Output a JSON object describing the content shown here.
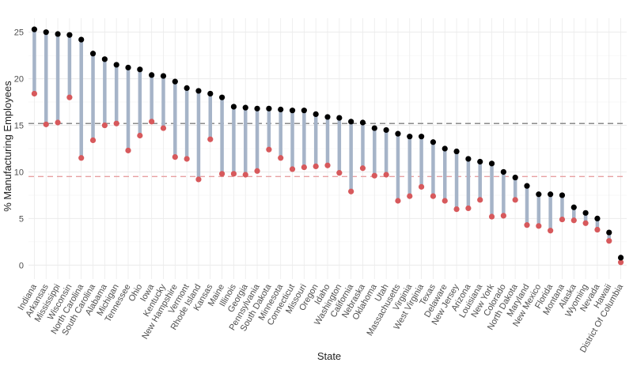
{
  "chart_data": {
    "type": "dumbbell",
    "xlabel": "State",
    "ylabel": "% Manufacturing Employees",
    "ylim": [
      -1.5,
      26.5
    ],
    "yticks": [
      0,
      5,
      10,
      15,
      20,
      25
    ],
    "grid": true,
    "legend": "none",
    "categories": [
      "Indiana",
      "Arkansas",
      "Mississippi",
      "Wisconsin",
      "North Carolina",
      "South Carolina",
      "Alabama",
      "Michigan",
      "Tennessee",
      "Ohio",
      "Iowa",
      "Kentucky",
      "New Hampshire",
      "Vermont",
      "Rhode Island",
      "Kansas",
      "Maine",
      "Illinois",
      "Georgia",
      "Pennsylvania",
      "South Dakota",
      "Minnesota",
      "Connecticut",
      "Missouri",
      "Oregon",
      "Idaho",
      "Washington",
      "California",
      "Nebraska",
      "Oklahoma",
      "Utah",
      "Massachusetts",
      "Virginia",
      "West Virginia",
      "Texas",
      "Delaware",
      "New Jersey",
      "Arizona",
      "Louisiana",
      "New York",
      "Colorado",
      "North Dakota",
      "Maryland",
      "New Mexico",
      "Florida",
      "Montana",
      "Alaska",
      "Wyoming",
      "Nevada",
      "Hawaii",
      "District Of Columbia"
    ],
    "series": [
      {
        "values": [
          25.3,
          25.0,
          24.8,
          24.7,
          24.2,
          22.7,
          22.1,
          21.5,
          21.2,
          21.0,
          20.4,
          20.3,
          19.7,
          19.0,
          18.7,
          18.4,
          18.0,
          17.0,
          16.9,
          16.8,
          16.8,
          16.7,
          16.6,
          16.6,
          16.2,
          15.9,
          15.8,
          15.4,
          15.3,
          14.7,
          14.5,
          14.1,
          13.8,
          13.8,
          13.2,
          12.5,
          12.2,
          11.4,
          11.1,
          10.9,
          10.0,
          9.4,
          8.5,
          7.6,
          7.6,
          7.5,
          6.2,
          5.6,
          5.0,
          3.5,
          0.8
        ],
        "color": "#000000"
      },
      {
        "values": [
          18.4,
          15.1,
          15.3,
          18.0,
          11.5,
          13.4,
          15.0,
          15.2,
          12.3,
          13.9,
          15.4,
          14.7,
          11.6,
          11.4,
          9.2,
          13.5,
          9.8,
          9.8,
          9.7,
          10.1,
          12.4,
          11.5,
          10.3,
          10.5,
          10.6,
          10.7,
          9.9,
          7.9,
          10.4,
          9.6,
          9.7,
          6.9,
          7.4,
          8.4,
          7.4,
          6.9,
          6.0,
          6.1,
          7.0,
          5.2,
          5.3,
          7.0,
          4.3,
          4.2,
          3.7,
          4.9,
          4.8,
          4.5,
          3.8,
          2.6,
          0.3
        ],
        "color": "#d7595c"
      }
    ],
    "reference_lines": [
      {
        "y": 15.2,
        "color": "#7f7f7f",
        "style": "dashed"
      },
      {
        "y": 9.5,
        "color": "#e8a0a1",
        "style": "dashed"
      }
    ],
    "colors": {
      "segment": "#a6b4c8",
      "top_point": "#000000",
      "bottom_point": "#d7595c",
      "grid": "#ebebeb"
    }
  }
}
